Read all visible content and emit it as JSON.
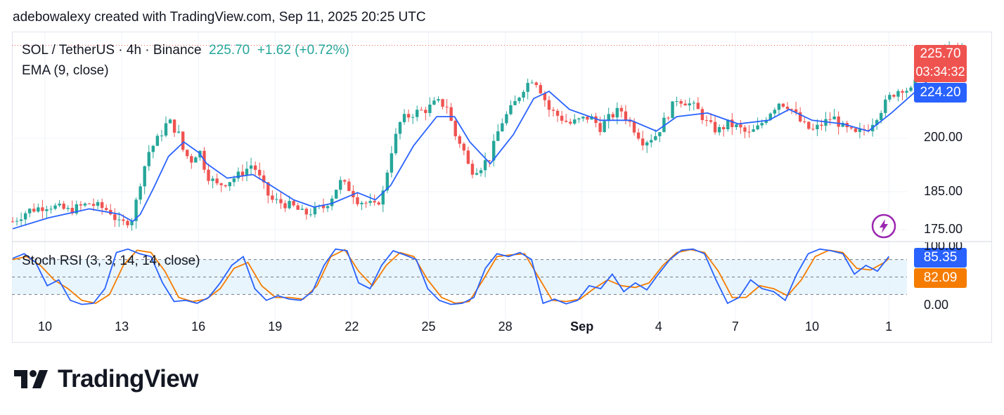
{
  "header": {
    "credit": "adebowalexy created with TradingView.com, Sep 11, 2025 20:25 UTC"
  },
  "legend": {
    "symbol": "SOL / TetherUS · 4h · Binance",
    "last": "225.70",
    "change": "+1.62 (+0.72%)",
    "ema": "EMA (9, close)",
    "stoch": "Stoch RSI (3, 3, 14, 14, close)"
  },
  "price_tags": {
    "last": "225.70",
    "countdown": "03:34:32",
    "ema": "224.20",
    "stoch_k": "85.35",
    "stoch_d": "82.09"
  },
  "colors": {
    "up": "#26a69a",
    "down": "#ef5350",
    "ema": "#2962ff",
    "k_line": "#2962ff",
    "d_line": "#f57c00",
    "band_fill": "#e3f2fd"
  },
  "footer": {
    "brand": "TradingView"
  },
  "chart_data": [
    {
      "type": "candlestick",
      "title": "SOL / TetherUS · 4h · Binance",
      "y_axis_labels": [
        "200.00",
        "185.00",
        "175.00"
      ],
      "x_axis_labels": [
        "10",
        "13",
        "16",
        "19",
        "22",
        "25",
        "28",
        "Sep",
        "4",
        "7",
        "10",
        "1"
      ],
      "ylim": [
        170,
        232
      ],
      "close_path": [
        [
          0,
          177
        ],
        [
          0.6,
          180
        ],
        [
          1.4,
          181.5
        ],
        [
          2.2,
          180
        ],
        [
          3.0,
          182
        ],
        [
          3.8,
          180
        ],
        [
          4.2,
          176
        ],
        [
          4.7,
          178
        ],
        [
          5.0,
          188
        ],
        [
          5.3,
          196
        ],
        [
          5.7,
          200
        ],
        [
          6.1,
          205
        ],
        [
          6.5,
          201
        ],
        [
          6.7,
          196
        ],
        [
          7.0,
          194
        ],
        [
          7.3,
          197
        ],
        [
          7.6,
          190
        ],
        [
          8.0,
          187
        ],
        [
          8.4,
          188
        ],
        [
          8.9,
          190
        ],
        [
          9.4,
          193
        ],
        [
          9.8,
          187
        ],
        [
          10.1,
          183
        ],
        [
          10.6,
          182
        ],
        [
          11.0,
          181
        ],
        [
          11.4,
          179
        ],
        [
          11.8,
          180
        ],
        [
          12.2,
          181
        ],
        [
          12.5,
          184
        ],
        [
          12.8,
          188
        ],
        [
          13.2,
          186
        ],
        [
          13.5,
          183
        ],
        [
          13.9,
          182
        ],
        [
          14.2,
          181
        ],
        [
          14.5,
          185
        ],
        [
          14.8,
          196
        ],
        [
          15.2,
          205
        ],
        [
          15.7,
          207
        ],
        [
          16.2,
          208
        ],
        [
          16.6,
          210
        ],
        [
          17.0,
          209
        ],
        [
          17.3,
          201
        ],
        [
          17.6,
          198
        ],
        [
          17.9,
          191
        ],
        [
          18.3,
          192
        ],
        [
          18.7,
          195
        ],
        [
          19.1,
          204
        ],
        [
          19.6,
          209
        ],
        [
          20.0,
          214
        ],
        [
          20.4,
          217
        ],
        [
          20.7,
          213
        ],
        [
          21.0,
          208
        ],
        [
          21.4,
          206
        ],
        [
          21.8,
          204
        ],
        [
          22.2,
          205
        ],
        [
          22.6,
          206
        ],
        [
          23.0,
          203
        ],
        [
          23.4,
          206
        ],
        [
          23.8,
          208
        ],
        [
          24.2,
          204
        ],
        [
          24.7,
          199
        ],
        [
          25.2,
          201
        ],
        [
          25.6,
          206
        ],
        [
          26.0,
          211
        ],
        [
          26.4,
          210
        ],
        [
          26.8,
          208
        ],
        [
          27.2,
          204
        ],
        [
          27.6,
          202
        ],
        [
          28.0,
          204
        ],
        [
          28.4,
          203
        ],
        [
          28.8,
          201
        ],
        [
          29.2,
          203
        ],
        [
          29.6,
          207
        ],
        [
          30.0,
          210
        ],
        [
          30.4,
          209
        ],
        [
          30.9,
          204
        ],
        [
          31.3,
          202
        ],
        [
          31.7,
          204
        ],
        [
          32.1,
          206
        ],
        [
          32.5,
          203
        ],
        [
          33.0,
          201
        ],
        [
          33.5,
          203
        ],
        [
          34.0,
          208
        ],
        [
          34.4,
          212
        ],
        [
          34.8,
          214
        ],
        [
          35.2,
          213
        ],
        [
          35.6,
          219
        ],
        [
          36.0,
          220
        ],
        [
          36.4,
          223
        ],
        [
          36.8,
          225
        ],
        [
          37.2,
          225.7
        ]
      ],
      "ema_path": [
        [
          0,
          175
        ],
        [
          1.4,
          178
        ],
        [
          3.0,
          180.5
        ],
        [
          4.2,
          179
        ],
        [
          4.7,
          177
        ],
        [
          5.0,
          179
        ],
        [
          5.5,
          186
        ],
        [
          6.1,
          195
        ],
        [
          6.7,
          199
        ],
        [
          7.3,
          196
        ],
        [
          7.6,
          193
        ],
        [
          8.4,
          189
        ],
        [
          9.4,
          190
        ],
        [
          10.1,
          187
        ],
        [
          11.0,
          183
        ],
        [
          11.8,
          181
        ],
        [
          12.5,
          182
        ],
        [
          13.5,
          185
        ],
        [
          14.2,
          183
        ],
        [
          14.8,
          187
        ],
        [
          15.7,
          198
        ],
        [
          16.6,
          206
        ],
        [
          17.3,
          206
        ],
        [
          17.9,
          199
        ],
        [
          18.7,
          193
        ],
        [
          19.6,
          201
        ],
        [
          20.4,
          211
        ],
        [
          21.0,
          213
        ],
        [
          21.8,
          208
        ],
        [
          23.0,
          205
        ],
        [
          24.2,
          205
        ],
        [
          25.2,
          202
        ],
        [
          26.0,
          206
        ],
        [
          27.2,
          207
        ],
        [
          28.4,
          204
        ],
        [
          29.6,
          205
        ],
        [
          30.4,
          208
        ],
        [
          31.3,
          205
        ],
        [
          32.5,
          204
        ],
        [
          33.5,
          202
        ],
        [
          34.4,
          207
        ],
        [
          35.2,
          212
        ],
        [
          36.0,
          217
        ],
        [
          36.8,
          222
        ],
        [
          37.2,
          224.2
        ]
      ],
      "last_price": 225.7,
      "ema_value": 224.2
    },
    {
      "type": "line",
      "title": "Stoch RSI (3, 3, 14, 14, close)",
      "ylim": [
        0,
        100
      ],
      "levels": [
        80,
        50,
        20
      ],
      "y_axis_labels": [
        "100.00",
        "0.00"
      ],
      "series": [
        {
          "name": "K",
          "values": [
            [
              0,
              82
            ],
            [
              0.5,
              90
            ],
            [
              1.0,
              75
            ],
            [
              1.5,
              35
            ],
            [
              2.0,
              45
            ],
            [
              2.5,
              10
            ],
            [
              3.0,
              3
            ],
            [
              3.5,
              5
            ],
            [
              4.0,
              30
            ],
            [
              4.5,
              92
            ],
            [
              5.0,
              98
            ],
            [
              5.5,
              90
            ],
            [
              6.0,
              85
            ],
            [
              6.5,
              40
            ],
            [
              7.0,
              8
            ],
            [
              7.5,
              10
            ],
            [
              8.0,
              5
            ],
            [
              8.5,
              15
            ],
            [
              9.0,
              40
            ],
            [
              9.5,
              70
            ],
            [
              10.0,
              85
            ],
            [
              10.5,
              30
            ],
            [
              11.0,
              10
            ],
            [
              11.5,
              18
            ],
            [
              12.0,
              12
            ],
            [
              12.5,
              10
            ],
            [
              13.0,
              25
            ],
            [
              13.5,
              70
            ],
            [
              14.0,
              98
            ],
            [
              14.5,
              95
            ],
            [
              15.0,
              40
            ],
            [
              15.5,
              30
            ],
            [
              16.0,
              70
            ],
            [
              16.5,
              95
            ],
            [
              17.0,
              88
            ],
            [
              17.5,
              80
            ],
            [
              18.0,
              30
            ],
            [
              18.5,
              10
            ],
            [
              19.0,
              3
            ],
            [
              19.5,
              5
            ],
            [
              20.0,
              15
            ],
            [
              20.5,
              65
            ],
            [
              21.0,
              90
            ],
            [
              21.5,
              85
            ],
            [
              22.0,
              92
            ],
            [
              22.5,
              80
            ],
            [
              23.0,
              5
            ],
            [
              23.5,
              12
            ],
            [
              24.0,
              4
            ],
            [
              24.5,
              10
            ],
            [
              25.0,
              35
            ],
            [
              25.5,
              30
            ],
            [
              26.0,
              55
            ],
            [
              26.5,
              25
            ],
            [
              27.0,
              40
            ],
            [
              27.5,
              28
            ],
            [
              28.0,
              55
            ],
            [
              28.5,
              80
            ],
            [
              29.0,
              96
            ],
            [
              29.5,
              98
            ],
            [
              30.0,
              90
            ],
            [
              30.5,
              45
            ],
            [
              31.0,
              5
            ],
            [
              31.5,
              15
            ],
            [
              32.0,
              45
            ],
            [
              32.5,
              30
            ],
            [
              33.0,
              25
            ],
            [
              33.5,
              10
            ],
            [
              34.0,
              55
            ],
            [
              34.5,
              90
            ],
            [
              35.0,
              98
            ],
            [
              35.5,
              95
            ],
            [
              36.0,
              90
            ],
            [
              36.5,
              55
            ],
            [
              37.0,
              70
            ],
            [
              37.5,
              60
            ],
            [
              38.0,
              85.35
            ]
          ]
        },
        {
          "name": "D",
          "values": [
            [
              0,
              80
            ],
            [
              0.6,
              85
            ],
            [
              1.2,
              70
            ],
            [
              1.8,
              45
            ],
            [
              2.4,
              30
            ],
            [
              3.0,
              10
            ],
            [
              3.6,
              5
            ],
            [
              4.2,
              20
            ],
            [
              4.8,
              70
            ],
            [
              5.4,
              96
            ],
            [
              6.0,
              92
            ],
            [
              6.6,
              60
            ],
            [
              7.2,
              15
            ],
            [
              7.8,
              8
            ],
            [
              8.4,
              12
            ],
            [
              9.0,
              30
            ],
            [
              9.6,
              65
            ],
            [
              10.2,
              75
            ],
            [
              10.8,
              35
            ],
            [
              11.4,
              15
            ],
            [
              12.0,
              15
            ],
            [
              12.6,
              12
            ],
            [
              13.2,
              35
            ],
            [
              13.8,
              85
            ],
            [
              14.4,
              97
            ],
            [
              15.0,
              60
            ],
            [
              15.6,
              35
            ],
            [
              16.2,
              70
            ],
            [
              16.8,
              92
            ],
            [
              17.4,
              85
            ],
            [
              18.0,
              45
            ],
            [
              18.6,
              15
            ],
            [
              19.2,
              5
            ],
            [
              19.8,
              8
            ],
            [
              20.4,
              45
            ],
            [
              21.0,
              85
            ],
            [
              21.6,
              88
            ],
            [
              22.2,
              90
            ],
            [
              22.8,
              50
            ],
            [
              23.4,
              10
            ],
            [
              24.0,
              8
            ],
            [
              24.6,
              12
            ],
            [
              25.2,
              30
            ],
            [
              25.8,
              45
            ],
            [
              26.4,
              35
            ],
            [
              27.0,
              32
            ],
            [
              27.6,
              40
            ],
            [
              28.2,
              70
            ],
            [
              28.8,
              92
            ],
            [
              29.4,
              97
            ],
            [
              30.0,
              92
            ],
            [
              30.6,
              60
            ],
            [
              31.2,
              15
            ],
            [
              31.8,
              15
            ],
            [
              32.4,
              35
            ],
            [
              33.0,
              30
            ],
            [
              33.6,
              18
            ],
            [
              34.2,
              45
            ],
            [
              34.8,
              85
            ],
            [
              35.4,
              96
            ],
            [
              36.0,
              92
            ],
            [
              36.6,
              65
            ],
            [
              37.2,
              62
            ],
            [
              37.8,
              75
            ],
            [
              38.0,
              82.09
            ]
          ]
        }
      ]
    }
  ]
}
